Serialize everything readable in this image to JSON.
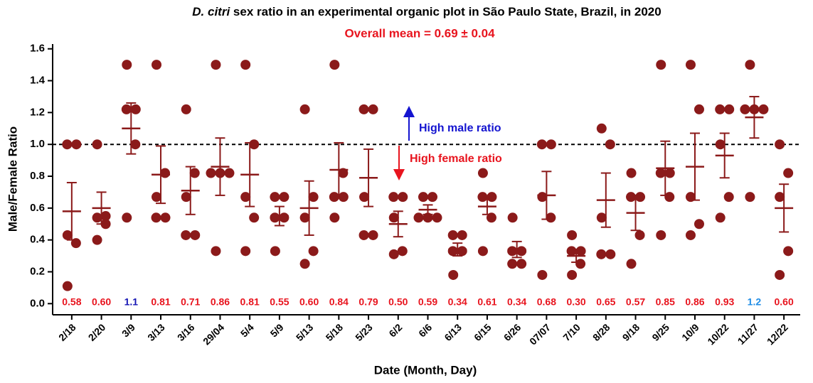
{
  "chart_data": {
    "type": "dotplot",
    "title_italic": "D. citri",
    "title": "sex ratio in an experimental organic plot in São Paulo State, Brazil, in 2020",
    "subtitle": "Overall mean = 0.69 ± 0.04",
    "xlabel": "Date (Month, Day)",
    "ylabel": "Male/Female Ratio",
    "annotations": [
      "High male ratio",
      "High female ratio"
    ],
    "hline": 1,
    "color": "#8b1a1a",
    "ylim": [
      -0.07,
      1.63
    ],
    "yticks": [
      {
        "value": 0,
        "label": "0.0"
      },
      0.2,
      0.4,
      0.6,
      0.8,
      {
        "value": 1,
        "label": "1.0"
      },
      1.2,
      1.4,
      1.6
    ],
    "categories": [
      "2/18",
      "2/20",
      "3/9",
      "3/13",
      "3/16",
      "29/04",
      "5/4",
      "5/9",
      "5/13",
      "5/18",
      "5/23",
      "6/2",
      "6/6",
      "6/13",
      "6/15",
      "6/26",
      "07/07",
      "7/10",
      "8/28",
      "9/18",
      "9/25",
      "10/9",
      "10/22",
      "11/27",
      "12/22"
    ],
    "values": [
      0.58,
      0.6,
      1.1,
      0.81,
      0.71,
      0.86,
      0.81,
      0.55,
      0.6,
      0.84,
      0.79,
      0.5,
      0.59,
      0.34,
      0.61,
      0.34,
      0.68,
      0.3,
      0.65,
      0.57,
      0.85,
      0.86,
      0.93,
      1.17,
      0.6
    ],
    "value_labels": [
      "0.58",
      "0.60",
      "1.1",
      "0.81",
      "0.71",
      "0.86",
      "0.81",
      "0.55",
      "0.60",
      "0.84",
      "0.79",
      "0.50",
      "0.59",
      "0.34",
      "0.61",
      "0.34",
      "0.68",
      "0.30",
      "0.65",
      "0.57",
      "0.85",
      "0.86",
      "0.93",
      "1.2",
      "0.60"
    ],
    "value_label_colors": [
      "#e8141e",
      "#e8141e",
      "#1414b4",
      "#e8141e",
      "#e8141e",
      "#e8141e",
      "#e8141e",
      "#e8141e",
      "#e8141e",
      "#e8141e",
      "#e8141e",
      "#e8141e",
      "#e8141e",
      "#e8141e",
      "#e8141e",
      "#e8141e",
      "#e8141e",
      "#e8141e",
      "#e8141e",
      "#e8141e",
      "#e8141e",
      "#e8141e",
      "#e8141e",
      "#1e8ce6",
      "#e8141e"
    ],
    "errors": [
      0.18,
      0.1,
      0.16,
      0.18,
      0.15,
      0.18,
      0.2,
      0.06,
      0.17,
      0.17,
      0.18,
      0.08,
      0.03,
      0.04,
      0.05,
      0.05,
      0.15,
      0.04,
      0.17,
      0.11,
      0.17,
      0.21,
      0.14,
      0.13,
      0.15
    ],
    "points": [
      [
        1.0,
        1.0,
        0.43,
        0.38,
        0.11
      ],
      [
        1.0,
        0.55,
        0.54,
        0.5,
        0.4
      ],
      [
        1.5,
        1.22,
        1.22,
        1.0,
        0.54
      ],
      [
        1.5,
        0.82,
        0.67,
        0.54,
        0.54
      ],
      [
        1.22,
        0.82,
        0.67,
        0.43,
        0.43
      ],
      [
        1.5,
        0.82,
        0.82,
        0.82,
        0.33
      ],
      [
        1.5,
        1.0,
        0.67,
        0.54,
        0.33
      ],
      [
        0.67,
        0.67,
        0.54,
        0.54,
        0.33
      ],
      [
        1.22,
        0.67,
        0.54,
        0.33,
        0.25
      ],
      [
        1.5,
        0.82,
        0.67,
        0.67,
        0.54
      ],
      [
        1.22,
        1.22,
        0.67,
        0.43,
        0.43
      ],
      [
        0.67,
        0.67,
        0.54,
        0.33,
        0.31
      ],
      [
        0.67,
        0.67,
        0.54,
        0.54,
        0.54
      ],
      [
        0.43,
        0.43,
        0.33,
        0.33,
        0.18
      ],
      [
        0.82,
        0.67,
        0.67,
        0.54,
        0.33
      ],
      [
        0.54,
        0.33,
        0.33,
        0.25,
        0.25
      ],
      [
        1.0,
        1.0,
        0.67,
        0.54,
        0.18
      ],
      [
        0.43,
        0.33,
        0.33,
        0.25,
        0.18
      ],
      [
        1.1,
        1.0,
        0.54,
        0.31,
        0.31
      ],
      [
        0.82,
        0.67,
        0.67,
        0.43,
        0.25
      ],
      [
        1.5,
        0.82,
        0.82,
        0.67,
        0.43
      ],
      [
        1.5,
        1.22,
        0.67,
        0.5,
        0.43
      ],
      [
        1.22,
        1.22,
        1.0,
        0.67,
        0.54
      ],
      [
        1.5,
        1.22,
        1.22,
        1.22,
        0.67
      ],
      [
        1.0,
        0.82,
        0.67,
        0.33,
        0.18
      ]
    ]
  }
}
